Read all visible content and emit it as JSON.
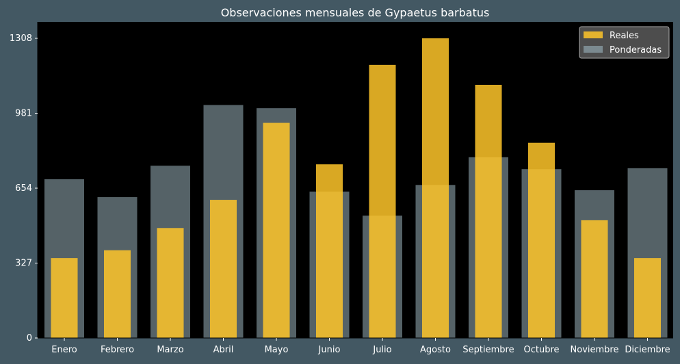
{
  "chart_data": {
    "type": "bar",
    "title": "Observaciones mensuales de Gypaetus barbatus",
    "xlabel": "",
    "ylabel": "",
    "categories": [
      "Enero",
      "Febrero",
      "Marzo",
      "Abril",
      "Mayo",
      "Junio",
      "Julio",
      "Agosto",
      "Septiembre",
      "Octubre",
      "Noviembre",
      "Diciembre"
    ],
    "yticks": [
      "0",
      "327",
      "654",
      "981",
      "1308"
    ],
    "ylim": [
      0,
      1308
    ],
    "grid": false,
    "legend_position": "top-right",
    "series": [
      {
        "name": "Ponderadas",
        "color": "#8ea4ac",
        "values": [
          693,
          615,
          752,
          1017,
          1003,
          639,
          534,
          668,
          789,
          737,
          645,
          741
        ]
      },
      {
        "name": "Reales",
        "color": "#ffc629",
        "values": [
          349,
          383,
          480,
          603,
          939,
          758,
          1192,
          1308,
          1105,
          852,
          514,
          349
        ]
      }
    ],
    "colors": {
      "figure_background": "#435863",
      "plot_background": "#000000",
      "text": "#ffffff",
      "legend_background": "#5a5a5a",
      "legend_border": "#aaaaaa"
    }
  }
}
